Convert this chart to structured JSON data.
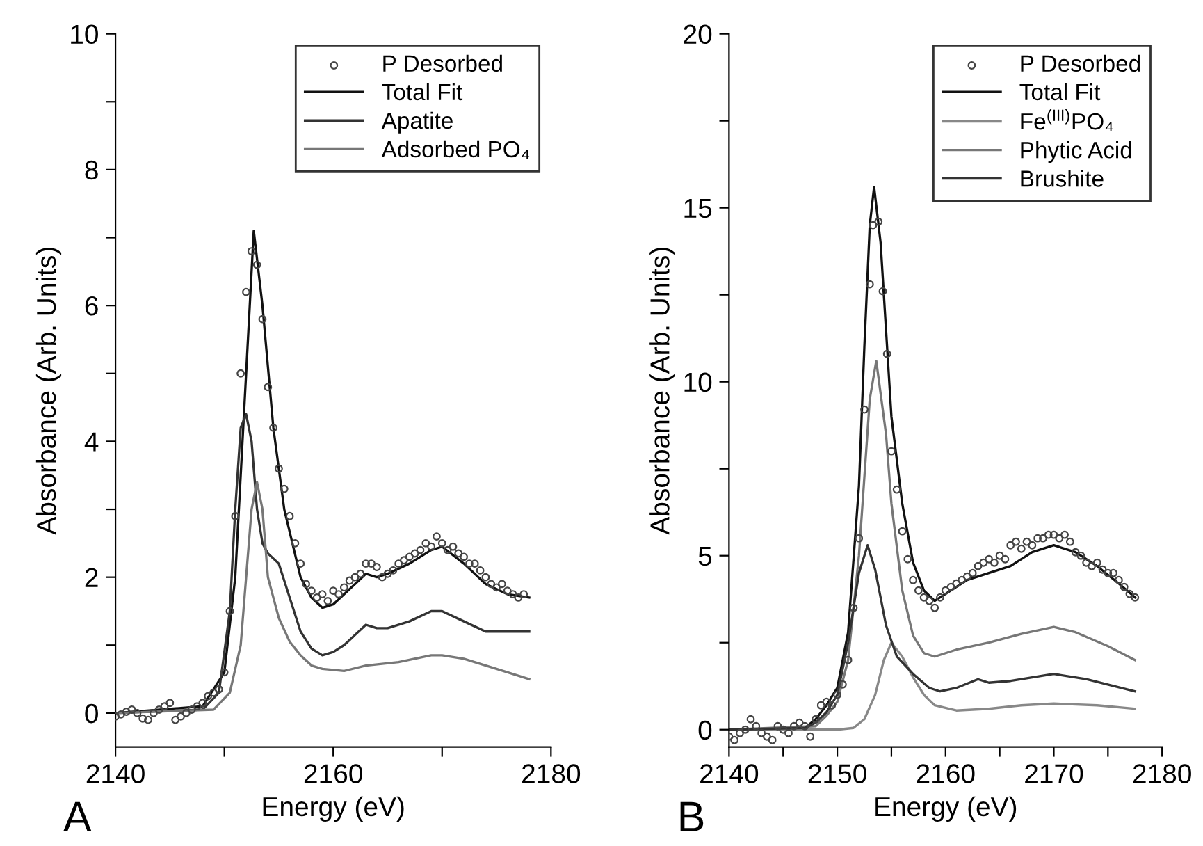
{
  "chart_data": [
    {
      "type": "line",
      "xlabel": "Energy (eV)",
      "ylabel": "Absorbance (Arb. Units)",
      "annotations": [
        "A"
      ],
      "xlim": [
        2140,
        2180
      ],
      "ylim": [
        -0.5,
        10
      ],
      "xticks": [
        2140,
        {
          "value": 2150,
          "label": null
        },
        2160,
        {
          "value": 2170,
          "label": null
        },
        2180
      ],
      "yticks": [
        0,
        {
          "value": 1,
          "label": null
        },
        2,
        {
          "value": 3,
          "label": null
        },
        4,
        {
          "value": 5,
          "label": null
        },
        6,
        {
          "value": 7,
          "label": null
        },
        8,
        {
          "value": 9,
          "label": null
        },
        10
      ],
      "grid": false,
      "legend": "top right",
      "series": [
        {
          "name": "P Desorbed",
          "type": "scatter",
          "marker": "circle",
          "color": "#444444",
          "x": [
            2140,
            2140.5,
            2141,
            2141.5,
            2142,
            2142.5,
            2143,
            2143.5,
            2144,
            2144.5,
            2145,
            2145.5,
            2146,
            2146.5,
            2147,
            2147.5,
            2148,
            2148.5,
            2149,
            2149.5,
            2150,
            2150.5,
            2151,
            2151.5,
            2152,
            2152.5,
            2153,
            2153.5,
            2154,
            2154.5,
            2155,
            2155.5,
            2156,
            2156.5,
            2157,
            2157.5,
            2158,
            2158.5,
            2159,
            2159.5,
            2160,
            2160.5,
            2161,
            2161.5,
            2162,
            2162.5,
            2163,
            2163.5,
            2164,
            2164.5,
            2165,
            2165.5,
            2166,
            2166.5,
            2167,
            2167.5,
            2168,
            2168.5,
            2169,
            2169.5,
            2170,
            2170.5,
            2171,
            2171.5,
            2172,
            2172.5,
            2173,
            2173.5,
            2174,
            2174.5,
            2175,
            2175.5,
            2176,
            2176.5,
            2177,
            2177.5
          ],
          "values": [
            -0.05,
            -0.02,
            0.02,
            0.05,
            0.0,
            -0.08,
            -0.1,
            0.0,
            0.05,
            0.1,
            0.15,
            -0.1,
            -0.05,
            0.0,
            0.05,
            0.1,
            0.15,
            0.25,
            0.3,
            0.35,
            0.6,
            1.5,
            2.9,
            5.0,
            6.2,
            6.8,
            6.6,
            5.8,
            4.8,
            4.2,
            3.6,
            3.3,
            2.9,
            2.5,
            2.2,
            1.9,
            1.8,
            1.7,
            1.75,
            1.65,
            1.8,
            1.75,
            1.85,
            1.95,
            2.0,
            2.05,
            2.2,
            2.2,
            2.15,
            2.0,
            2.05,
            2.1,
            2.2,
            2.25,
            2.3,
            2.35,
            2.4,
            2.5,
            2.45,
            2.6,
            2.5,
            2.4,
            2.45,
            2.35,
            2.3,
            2.2,
            2.2,
            2.1,
            2.0,
            1.9,
            1.85,
            1.9,
            1.8,
            1.75,
            1.7,
            1.75
          ]
        },
        {
          "name": "Total Fit",
          "type": "line",
          "color": "#111111",
          "x": [
            2140,
            2148,
            2150,
            2151,
            2152,
            2152.7,
            2153.5,
            2154.5,
            2155.5,
            2157,
            2158,
            2159,
            2160,
            2162,
            2163,
            2164,
            2165,
            2167,
            2169,
            2170,
            2172,
            2174,
            2176,
            2178
          ],
          "values": [
            0,
            0.1,
            0.6,
            2.0,
            5.0,
            7.1,
            6.0,
            4.2,
            3.0,
            2.0,
            1.7,
            1.55,
            1.6,
            1.9,
            2.05,
            2.0,
            2.05,
            2.2,
            2.4,
            2.45,
            2.2,
            1.9,
            1.75,
            1.7
          ]
        },
        {
          "name": "Apatite",
          "type": "line",
          "color": "#333333",
          "x": [
            2140,
            2148,
            2149.5,
            2150.5,
            2151,
            2151.5,
            2152,
            2152.5,
            2153,
            2153.5,
            2154,
            2155,
            2156,
            2157,
            2158,
            2159,
            2160,
            2161,
            2162,
            2163,
            2164,
            2165,
            2167,
            2169,
            2170,
            2172,
            2174,
            2178
          ],
          "values": [
            0,
            0.05,
            0.3,
            1.5,
            3.0,
            4.2,
            4.4,
            4.0,
            3.0,
            2.5,
            2.35,
            2.2,
            1.7,
            1.2,
            0.95,
            0.85,
            0.9,
            1.0,
            1.15,
            1.3,
            1.25,
            1.25,
            1.35,
            1.5,
            1.5,
            1.35,
            1.2,
            1.2
          ]
        },
        {
          "name": "Adsorbed PO₄",
          "type": "line",
          "color": "#777777",
          "x": [
            2140,
            2149,
            2150.5,
            2151.5,
            2152,
            2152.5,
            2153,
            2153.5,
            2154,
            2155,
            2156,
            2157,
            2158,
            2159,
            2161,
            2163,
            2166,
            2169,
            2170,
            2172,
            2175,
            2178
          ],
          "values": [
            0,
            0.05,
            0.3,
            1.0,
            2.0,
            3.0,
            3.4,
            3.0,
            2.0,
            1.4,
            1.05,
            0.85,
            0.7,
            0.65,
            0.62,
            0.7,
            0.75,
            0.85,
            0.85,
            0.8,
            0.65,
            0.5
          ]
        }
      ]
    },
    {
      "type": "line",
      "xlabel": "Energy (eV)",
      "ylabel": "Absorbance (Arb. Units)",
      "annotations": [
        "B"
      ],
      "xlim": [
        2140,
        2180
      ],
      "ylim": [
        -0.5,
        20
      ],
      "xticks": [
        2140,
        {
          "value": 2145,
          "label": null
        },
        2150,
        {
          "value": 2155,
          "label": null
        },
        2160,
        {
          "value": 2165,
          "label": null
        },
        2170,
        {
          "value": 2175,
          "label": null
        },
        2180
      ],
      "yticks": [
        0,
        {
          "value": 2.5,
          "label": null
        },
        5,
        {
          "value": 7.5,
          "label": null
        },
        10,
        {
          "value": 12.5,
          "label": null
        },
        15,
        {
          "value": 17.5,
          "label": null
        },
        20
      ],
      "grid": false,
      "legend": "top right",
      "series": [
        {
          "name": "P Desorbed",
          "type": "scatter",
          "marker": "circle",
          "color": "#444444",
          "x": [
            2140,
            2140.5,
            2141,
            2141.5,
            2142,
            2142.5,
            2143,
            2143.5,
            2144,
            2144.5,
            2145,
            2145.5,
            2146,
            2146.5,
            2147,
            2147.5,
            2148,
            2148.5,
            2149,
            2149.5,
            2150,
            2150.5,
            2151,
            2151.5,
            2152,
            2152.5,
            2153,
            2153.3,
            2153.8,
            2154.2,
            2154.6,
            2155,
            2155.5,
            2156,
            2156.5,
            2157,
            2157.5,
            2158,
            2158.5,
            2159,
            2159.5,
            2160,
            2160.5,
            2161,
            2161.5,
            2162,
            2162.5,
            2163,
            2163.5,
            2164,
            2164.5,
            2165,
            2165.5,
            2166,
            2166.5,
            2167,
            2167.5,
            2168,
            2168.5,
            2169,
            2169.5,
            2170,
            2170.5,
            2171,
            2171.5,
            2172,
            2172.5,
            2173,
            2173.5,
            2174,
            2174.5,
            2175,
            2175.5,
            2176,
            2176.5,
            2177,
            2177.5
          ],
          "values": [
            -0.2,
            -0.3,
            -0.1,
            0.0,
            0.3,
            0.1,
            -0.1,
            -0.2,
            -0.3,
            0.1,
            0.0,
            -0.1,
            0.1,
            0.2,
            0.1,
            -0.2,
            0.3,
            0.7,
            0.8,
            0.7,
            1.0,
            1.3,
            2.0,
            3.5,
            5.5,
            9.2,
            12.8,
            14.5,
            14.6,
            12.6,
            10.8,
            8.0,
            6.9,
            5.7,
            4.9,
            4.3,
            4.0,
            3.8,
            3.7,
            3.5,
            3.8,
            4.0,
            4.1,
            4.2,
            4.3,
            4.4,
            4.5,
            4.7,
            4.8,
            4.9,
            4.8,
            5.0,
            4.9,
            5.3,
            5.4,
            5.2,
            5.4,
            5.3,
            5.5,
            5.5,
            5.6,
            5.6,
            5.5,
            5.6,
            5.4,
            5.1,
            5.0,
            4.8,
            4.7,
            4.8,
            4.6,
            4.5,
            4.5,
            4.3,
            4.1,
            3.9,
            3.8
          ]
        },
        {
          "name": "Total Fit",
          "type": "line",
          "color": "#111111",
          "x": [
            2140,
            2147,
            2148,
            2149,
            2150,
            2151,
            2152,
            2152.5,
            2153,
            2153.4,
            2154,
            2154.5,
            2155,
            2156,
            2157,
            2158,
            2159,
            2160,
            2162,
            2164,
            2166,
            2168,
            2170,
            2172,
            2174,
            2176,
            2177.5
          ],
          "values": [
            0,
            0.05,
            0.3,
            0.7,
            1.2,
            2.8,
            7.0,
            11,
            14.5,
            15.6,
            14.0,
            11.5,
            9.0,
            6.5,
            4.8,
            4.0,
            3.7,
            3.9,
            4.3,
            4.5,
            4.7,
            5.1,
            5.3,
            5.1,
            4.7,
            4.2,
            3.8
          ]
        },
        {
          "name": "Fe$^{(III)}$PO₄",
          "type": "line",
          "color": "#888888",
          "x": [
            2140,
            2150,
            2151.5,
            2152.5,
            2153.5,
            2154.3,
            2155,
            2156,
            2157,
            2158,
            2159,
            2161,
            2164,
            2167,
            2170,
            2174,
            2177.5
          ],
          "values": [
            0,
            0.0,
            0.05,
            0.3,
            1.0,
            2.0,
            2.5,
            2.1,
            1.5,
            1.0,
            0.7,
            0.55,
            0.6,
            0.7,
            0.75,
            0.7,
            0.6
          ]
        },
        {
          "name": "Phytic Acid",
          "type": "line",
          "color": "#777777",
          "x": [
            2140,
            2148,
            2149,
            2150,
            2151,
            2152,
            2153,
            2153.6,
            2154.5,
            2155,
            2156,
            2157,
            2158,
            2159,
            2161,
            2164,
            2167,
            2170,
            2172,
            2175,
            2177.5
          ],
          "values": [
            0,
            0.1,
            0.4,
            0.8,
            2.0,
            5.0,
            9.5,
            10.6,
            8.5,
            6.5,
            4.0,
            2.7,
            2.2,
            2.1,
            2.3,
            2.5,
            2.75,
            2.95,
            2.8,
            2.4,
            2.0
          ]
        },
        {
          "name": "Brushite",
          "type": "line",
          "color": "#333333",
          "x": [
            2140,
            2147,
            2148,
            2149,
            2150,
            2151,
            2152,
            2152.8,
            2153.5,
            2154.5,
            2155.5,
            2157,
            2158.5,
            2159.5,
            2161,
            2163,
            2164,
            2166,
            2170,
            2173,
            2177.5
          ],
          "values": [
            0,
            0.05,
            0.2,
            0.5,
            1.0,
            2.5,
            4.5,
            5.3,
            4.6,
            3.0,
            2.1,
            1.6,
            1.2,
            1.1,
            1.2,
            1.45,
            1.35,
            1.4,
            1.6,
            1.45,
            1.1
          ]
        }
      ]
    }
  ]
}
